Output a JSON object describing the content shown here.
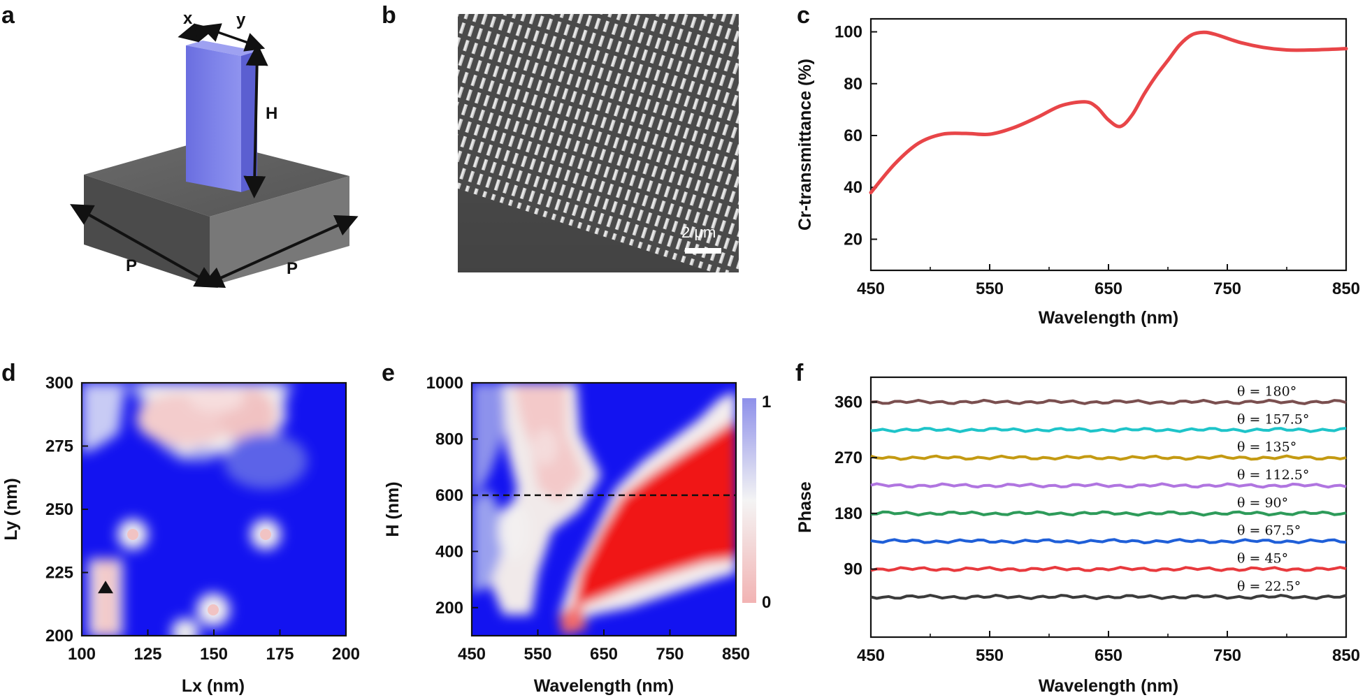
{
  "panels": {
    "a": {
      "label": "a",
      "dim_labels": {
        "x": "x",
        "y": "y",
        "H": "H",
        "P_left": "P",
        "P_right": "P"
      }
    },
    "b": {
      "label": "b",
      "scale_bar": "2 μm"
    },
    "c": {
      "label": "c"
    },
    "d": {
      "label": "d"
    },
    "e": {
      "label": "e",
      "colorbar_max": "1",
      "colorbar_min": "0"
    },
    "f": {
      "label": "f"
    }
  },
  "colors": {
    "pillar": "#6f73e0",
    "substrate": "#5e5e5e",
    "curve_c": "#e84548",
    "map_blue": "#1313f0",
    "map_red": "#f01515"
  },
  "chart_data": [
    {
      "id": "c",
      "type": "line",
      "xlabel": "Wavelength (nm)",
      "ylabel": "Cr-transmittance (%)",
      "xlim": [
        450,
        850
      ],
      "ylim": [
        8,
        105
      ],
      "xticks": [
        450,
        550,
        650,
        750,
        850
      ],
      "yticks": [
        20,
        40,
        60,
        80,
        100
      ],
      "x": [
        450,
        470,
        490,
        510,
        530,
        550,
        570,
        590,
        610,
        630,
        640,
        650,
        660,
        670,
        680,
        690,
        700,
        710,
        720,
        730,
        740,
        760,
        780,
        800,
        820,
        850
      ],
      "y": [
        38,
        49,
        57,
        60.5,
        60.8,
        60.5,
        63,
        67,
        71.5,
        73,
        71,
        66,
        63.5,
        68,
        76,
        83,
        89,
        95,
        98.8,
        99.8,
        99,
        96,
        94,
        93,
        93,
        93.5
      ]
    },
    {
      "id": "d",
      "type": "heatmap",
      "xlabel": "Lx (nm)",
      "ylabel": "Ly (nm)",
      "xlim": [
        100,
        200
      ],
      "ylim": [
        200,
        300
      ],
      "xticks": [
        100,
        125,
        150,
        175,
        200
      ],
      "yticks": [
        200,
        225,
        250,
        275,
        300
      ],
      "marker": {
        "x": 109,
        "y": 219,
        "shape": "triangle"
      }
    },
    {
      "id": "e",
      "type": "heatmap",
      "xlabel": "Wavelength (nm)",
      "ylabel": "H (nm)",
      "xlim": [
        450,
        850
      ],
      "ylim": [
        100,
        1000
      ],
      "xticks": [
        450,
        550,
        650,
        750,
        850
      ],
      "yticks": [
        200,
        400,
        600,
        800,
        1000
      ],
      "reference_line_y": 600,
      "colorbar": [
        0,
        1
      ]
    },
    {
      "id": "f",
      "type": "line",
      "xlabel": "Wavelength (nm)",
      "ylabel": "Phase",
      "xlim": [
        450,
        850
      ],
      "ylim": [
        -20,
        400
      ],
      "xticks": [
        450,
        550,
        650,
        750,
        850
      ],
      "yticks": [
        90,
        180,
        270,
        360
      ],
      "series": [
        {
          "name": "θ = 22.5°",
          "phase": 45,
          "color": "#3b3b3b"
        },
        {
          "name": "θ = 45°",
          "phase": 90,
          "color": "#e8393d"
        },
        {
          "name": "θ = 67.5°",
          "phase": 135,
          "color": "#1f5fd8"
        },
        {
          "name": "θ = 90°",
          "phase": 180,
          "color": "#2e9b5a"
        },
        {
          "name": "θ = 112.5°",
          "phase": 225,
          "color": "#b075e0"
        },
        {
          "name": "θ = 135°",
          "phase": 270,
          "color": "#c49a12"
        },
        {
          "name": "θ = 157.5°",
          "phase": 315,
          "color": "#1ec4c9"
        },
        {
          "name": "θ = 180°",
          "phase": 360,
          "color": "#7a4f4f"
        }
      ]
    }
  ]
}
